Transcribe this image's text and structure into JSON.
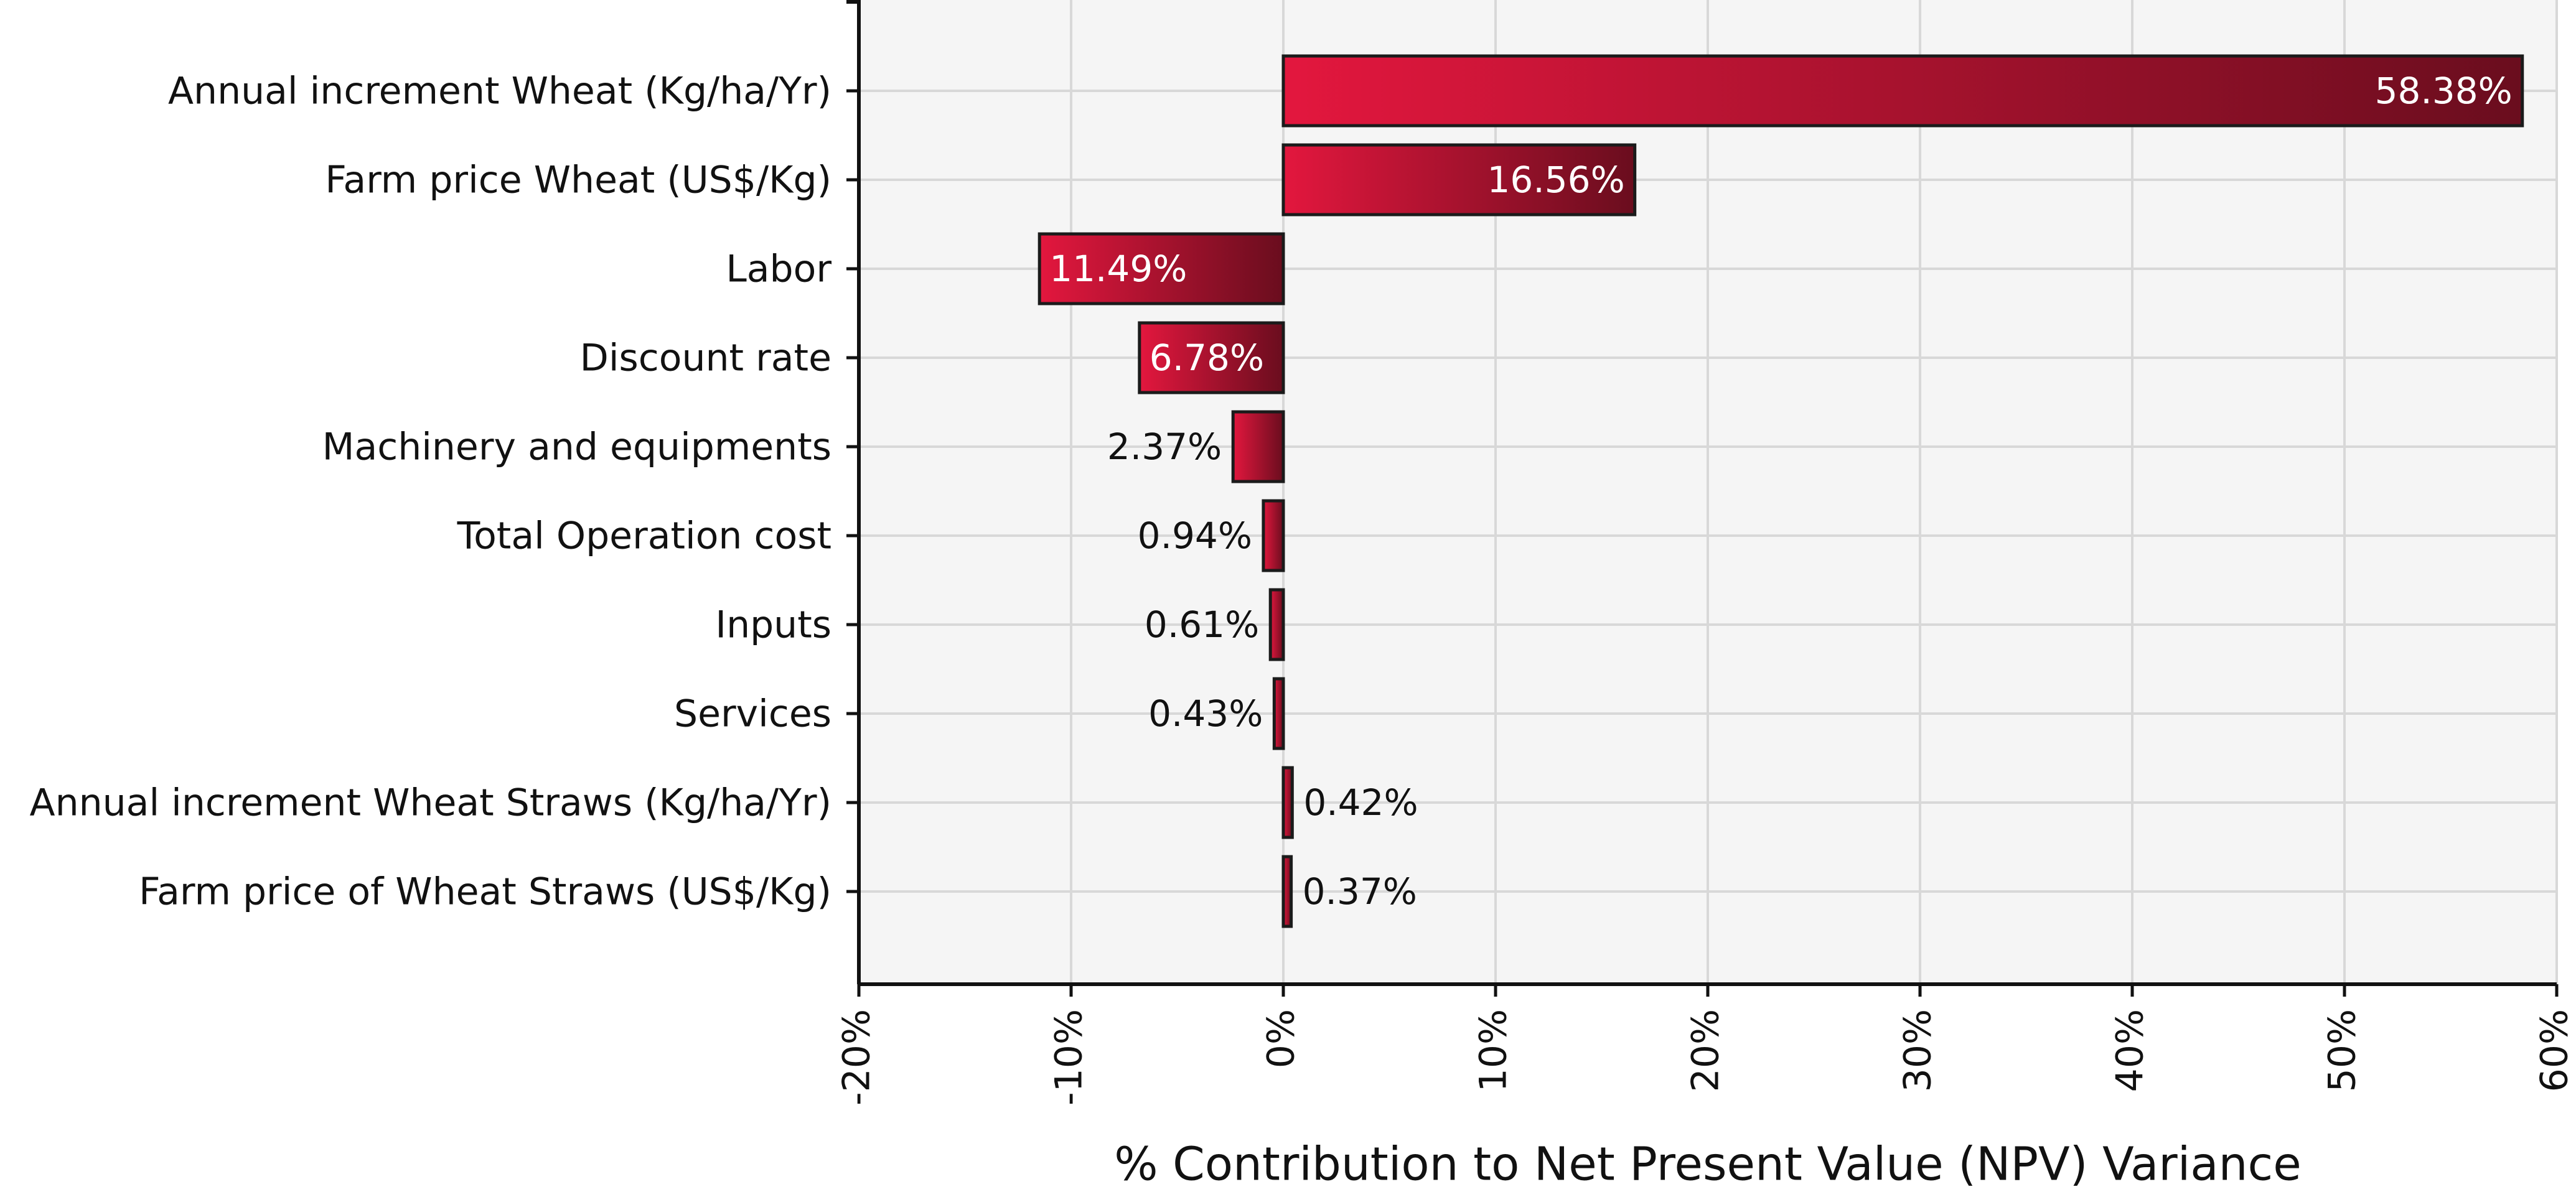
{
  "chart_data": {
    "type": "bar",
    "orientation": "horizontal",
    "title": "",
    "xlabel": "% Contribution to Net Present Value (NPV) Variance",
    "ylabel": "",
    "xlim": [
      -20,
      60
    ],
    "xticks": [
      -20,
      -10,
      0,
      10,
      20,
      30,
      40,
      50,
      60
    ],
    "xtick_labels": [
      "-20%",
      "-10%",
      "0%",
      "10%",
      "20%",
      "30%",
      "40%",
      "50%",
      "60%"
    ],
    "grid": true,
    "categories": [
      "Annual increment Wheat (Kg/ha/Yr)",
      "Farm price Wheat  (US$/Kg)",
      "Labor",
      "Discount rate",
      "Machinery and equipments",
      "Total Operation cost",
      "Inputs",
      "Services",
      "Annual increment Wheat Straws (Kg/ha/Yr)",
      "Farm price of Wheat Straws  (US$/Kg)"
    ],
    "values": [
      58.38,
      16.56,
      -11.49,
      -6.78,
      -2.37,
      -0.94,
      -0.61,
      -0.43,
      0.42,
      0.37
    ],
    "data_labels": [
      "58.38%",
      "16.56%",
      "11.49%",
      "6.78%",
      "2.37%",
      "0.94%",
      "0.61%",
      "0.43%",
      "0.42%",
      "0.37%"
    ]
  },
  "colors": {
    "plot_background": "#f5f5f5",
    "grid": "#d8d8d8",
    "bar_light": "#e3173e",
    "bar_dark": "#6a0d1e",
    "bar_outline": "#1b1b1b",
    "axis": "#111111",
    "text": "#111111",
    "label_inside": "#ffffff"
  }
}
